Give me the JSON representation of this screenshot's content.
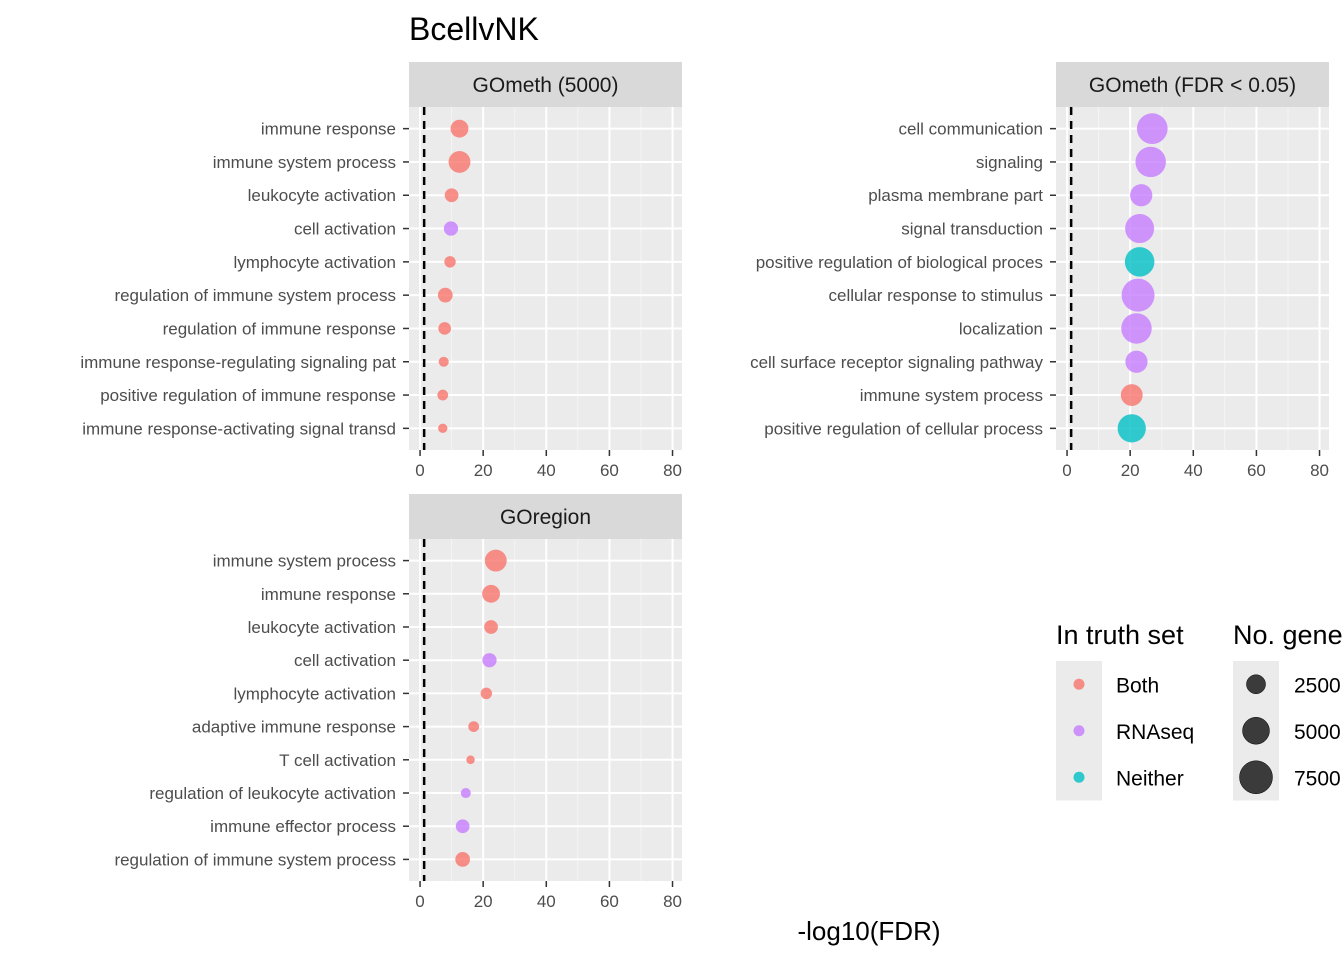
{
  "chart_data": {
    "type": "scatter",
    "title": "BcellvNK",
    "xlabel": "-log10(FDR)",
    "xlim": [
      -3.5,
      83
    ],
    "xticks": [
      0,
      20,
      40,
      60,
      80
    ],
    "reference_line_x": 1.3,
    "grid": true,
    "colors": {
      "Both": "#F8766D",
      "RNAseq": "#C77CFF",
      "Neither": "#00BFC4"
    },
    "panels": [
      {
        "title": "GOmeth (5000)",
        "points": [
          {
            "term": "immune response",
            "x": 12.5,
            "genes": 2200,
            "truth": "Both"
          },
          {
            "term": "immune system process",
            "x": 12.5,
            "genes": 3300,
            "truth": "Both"
          },
          {
            "term": "leukocyte activation",
            "x": 10.0,
            "genes": 1300,
            "truth": "Both"
          },
          {
            "term": "cell activation",
            "x": 9.8,
            "genes": 1400,
            "truth": "RNAseq"
          },
          {
            "term": "lymphocyte activation",
            "x": 9.5,
            "genes": 900,
            "truth": "Both"
          },
          {
            "term": "regulation of immune system process",
            "x": 8.0,
            "genes": 1500,
            "truth": "Both"
          },
          {
            "term": "regulation of immune response",
            "x": 7.8,
            "genes": 1100,
            "truth": "Both"
          },
          {
            "term": "immune response-regulating signaling pat",
            "x": 7.5,
            "genes": 700,
            "truth": "Both"
          },
          {
            "term": "positive regulation of immune response",
            "x": 7.2,
            "genes": 800,
            "truth": "Both"
          },
          {
            "term": "immune response-activating signal transd",
            "x": 7.2,
            "genes": 600,
            "truth": "Both"
          }
        ]
      },
      {
        "title": "GOmeth (FDR < 0.05)",
        "points": [
          {
            "term": "cell communication",
            "x": 27.0,
            "genes": 6500,
            "truth": "RNAseq"
          },
          {
            "term": "signaling",
            "x": 26.5,
            "genes": 6400,
            "truth": "RNAseq"
          },
          {
            "term": "plasma membrane part",
            "x": 23.5,
            "genes": 3400,
            "truth": "RNAseq"
          },
          {
            "term": "signal transduction",
            "x": 23.0,
            "genes": 5800,
            "truth": "RNAseq"
          },
          {
            "term": "positive regulation of biological proces",
            "x": 23.0,
            "genes": 6000,
            "truth": "Neither"
          },
          {
            "term": "cellular response to stimulus",
            "x": 22.5,
            "genes": 7500,
            "truth": "RNAseq"
          },
          {
            "term": "localization",
            "x": 22.0,
            "genes": 6400,
            "truth": "RNAseq"
          },
          {
            "term": "cell surface receptor signaling pathway",
            "x": 22.0,
            "genes": 3400,
            "truth": "RNAseq"
          },
          {
            "term": "immune system process",
            "x": 20.5,
            "genes": 3300,
            "truth": "Both"
          },
          {
            "term": "positive regulation of cellular process",
            "x": 20.5,
            "genes": 5500,
            "truth": "Neither"
          }
        ]
      },
      {
        "title": "GOregion",
        "points": [
          {
            "term": "immune system process",
            "x": 24.0,
            "genes": 3300,
            "truth": "Both"
          },
          {
            "term": "immune response",
            "x": 22.5,
            "genes": 2200,
            "truth": "Both"
          },
          {
            "term": "leukocyte activation",
            "x": 22.5,
            "genes": 1300,
            "truth": "Both"
          },
          {
            "term": "cell activation",
            "x": 22.0,
            "genes": 1400,
            "truth": "RNAseq"
          },
          {
            "term": "lymphocyte activation",
            "x": 21.0,
            "genes": 900,
            "truth": "Both"
          },
          {
            "term": "adaptive immune response",
            "x": 17.0,
            "genes": 800,
            "truth": "Both"
          },
          {
            "term": "T cell activation",
            "x": 16.0,
            "genes": 500,
            "truth": "Both"
          },
          {
            "term": "regulation of leukocyte activation",
            "x": 14.5,
            "genes": 700,
            "truth": "RNAseq"
          },
          {
            "term": "immune effector process",
            "x": 13.5,
            "genes": 1300,
            "truth": "RNAseq"
          },
          {
            "term": "regulation of immune system process",
            "x": 13.5,
            "genes": 1500,
            "truth": "Both"
          }
        ]
      }
    ],
    "legend": {
      "placement": "right",
      "color_title": "In truth set",
      "color_items": [
        "Both",
        "RNAseq",
        "Neither"
      ],
      "size_title": "No. gene",
      "size_items": [
        {
          "label": "2500",
          "value": 2500
        },
        {
          "label": "5000",
          "value": 5000
        },
        {
          "label": "7500",
          "value": 7500
        }
      ]
    }
  }
}
